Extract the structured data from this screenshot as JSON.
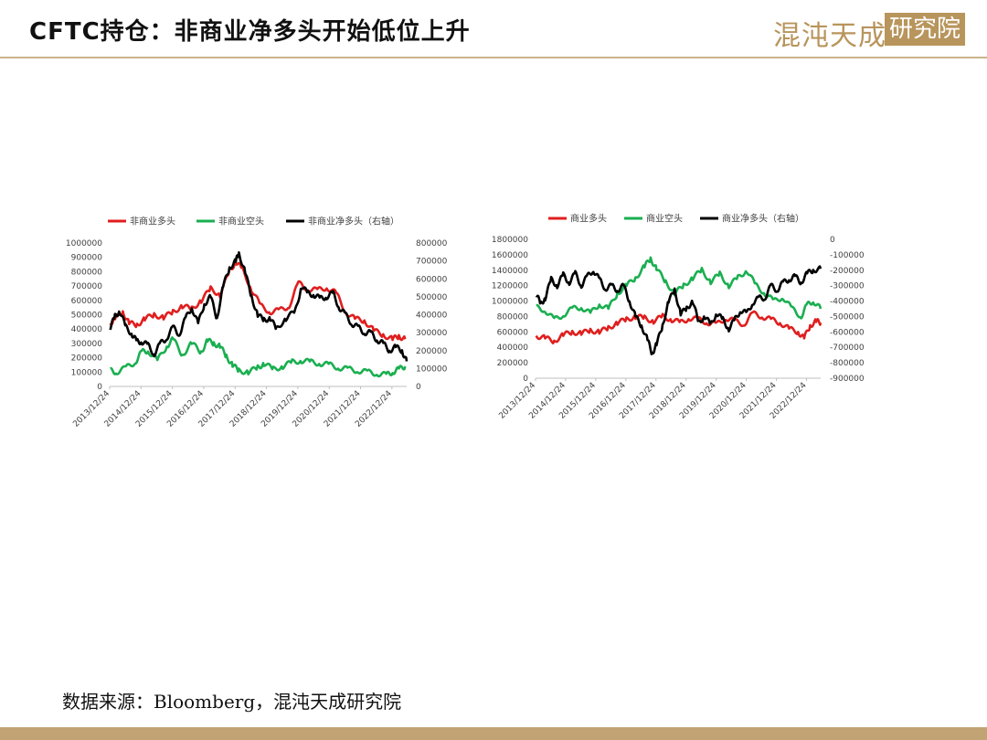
{
  "page": {
    "title": "CFTC持仓：非商业净多头开始低位上升",
    "logo_left": "混沌天成",
    "logo_right": "研究院",
    "source": "数据来源：Bloomberg，混沌天成研究院"
  },
  "colors": {
    "red": "#e01e1e",
    "green": "#1aaf50",
    "black": "#000000",
    "gold": "#b8955c"
  },
  "chart_data": [
    {
      "type": "line",
      "legend": [
        "非商业多头",
        "非商业空头",
        "非商业净多头（右轴）"
      ],
      "x_ticks": [
        "2013/12/24",
        "2014/12/24",
        "2015/12/24",
        "2016/12/24",
        "2017/12/24",
        "2018/12/24",
        "2019/12/24",
        "2020/12/24",
        "2021/12/24",
        "2022/12/24"
      ],
      "x_range": [
        2013.98,
        2023.45
      ],
      "y_left": {
        "ylim": [
          0,
          1000000
        ],
        "ticks": [
          "1000000",
          "900000",
          "800000",
          "700000",
          "600000",
          "500000",
          "400000",
          "300000",
          "200000",
          "100000",
          "0"
        ]
      },
      "y_right": {
        "ylim": [
          0,
          800000
        ],
        "ticks": [
          "800000",
          "700000",
          "600000",
          "500000",
          "400000",
          "300000",
          "200000",
          "100000",
          "0"
        ]
      },
      "series": [
        {
          "name": "非商业多头",
          "color": "#e01e1e",
          "axis": "left",
          "x": [
            2014.0,
            2014.15,
            2014.4,
            2014.6,
            2014.85,
            2015.1,
            2015.4,
            2015.7,
            2016.0,
            2016.3,
            2016.6,
            2016.9,
            2017.2,
            2017.5,
            2017.8,
            2018.0,
            2018.2,
            2018.5,
            2018.8,
            2019.1,
            2019.4,
            2019.7,
            2020.0,
            2020.3,
            2020.6,
            2020.9,
            2021.2,
            2021.5,
            2021.8,
            2022.1,
            2022.4,
            2022.7,
            2023.0,
            2023.2,
            2023.4
          ],
          "y": [
            440000,
            470000,
            520000,
            440000,
            430000,
            470000,
            500000,
            480000,
            520000,
            560000,
            540000,
            600000,
            680000,
            640000,
            800000,
            870000,
            820000,
            680000,
            560000,
            520000,
            530000,
            560000,
            720000,
            680000,
            670000,
            690000,
            650000,
            520000,
            470000,
            460000,
            390000,
            360000,
            330000,
            350000,
            330000
          ]
        },
        {
          "name": "非商业空头",
          "color": "#1aaf50",
          "axis": "left",
          "x": [
            2014.0,
            2014.2,
            2014.5,
            2014.8,
            2015.0,
            2015.2,
            2015.5,
            2015.8,
            2016.0,
            2016.3,
            2016.6,
            2016.9,
            2017.1,
            2017.3,
            2017.5,
            2017.7,
            2017.9,
            2018.1,
            2018.4,
            2018.7,
            2018.9,
            2019.2,
            2019.5,
            2019.8,
            2020.1,
            2020.4,
            2020.7,
            2021.0,
            2021.3,
            2021.6,
            2021.9,
            2022.2,
            2022.5,
            2022.8,
            2023.0,
            2023.2,
            2023.4
          ],
          "y": [
            110000,
            100000,
            130000,
            170000,
            240000,
            250000,
            180000,
            280000,
            330000,
            220000,
            300000,
            240000,
            320000,
            300000,
            280000,
            210000,
            150000,
            110000,
            100000,
            130000,
            160000,
            120000,
            140000,
            170000,
            180000,
            170000,
            160000,
            150000,
            130000,
            120000,
            110000,
            100000,
            90000,
            80000,
            100000,
            120000,
            140000
          ]
        },
        {
          "name": "非商业净多头（右轴）",
          "color": "#000000",
          "axis": "right",
          "x": [
            2014.0,
            2014.15,
            2014.3,
            2014.5,
            2014.7,
            2014.85,
            2015.0,
            2015.2,
            2015.4,
            2015.6,
            2015.8,
            2016.0,
            2016.2,
            2016.4,
            2016.6,
            2016.8,
            2017.0,
            2017.2,
            2017.4,
            2017.6,
            2017.8,
            2018.0,
            2018.1,
            2018.3,
            2018.5,
            2018.7,
            2018.9,
            2019.1,
            2019.3,
            2019.6,
            2019.9,
            2020.1,
            2020.3,
            2020.5,
            2020.7,
            2020.9,
            2021.1,
            2021.3,
            2021.5,
            2021.7,
            2021.9,
            2022.1,
            2022.3,
            2022.5,
            2022.7,
            2022.9,
            2023.1,
            2023.3,
            2023.45
          ],
          "y": [
            330000,
            390000,
            420000,
            330000,
            290000,
            250000,
            250000,
            230000,
            180000,
            240000,
            270000,
            330000,
            290000,
            380000,
            440000,
            350000,
            460000,
            500000,
            380000,
            560000,
            660000,
            700000,
            740000,
            640000,
            500000,
            400000,
            370000,
            380000,
            320000,
            380000,
            420000,
            560000,
            520000,
            510000,
            490000,
            500000,
            520000,
            440000,
            400000,
            350000,
            330000,
            300000,
            300000,
            260000,
            240000,
            200000,
            220000,
            200000,
            140000
          ]
        }
      ]
    },
    {
      "type": "line",
      "legend": [
        "商业多头",
        "商业空头",
        "商业净多头（右轴）"
      ],
      "x_ticks": [
        "2013/12/24",
        "2014/12/24",
        "2015/12/24",
        "2016/12/24",
        "2017/12/24",
        "2018/12/24",
        "2019/12/24",
        "2020/12/24",
        "2021/12/24",
        "2022/12/24"
      ],
      "x_range": [
        2013.98,
        2023.45
      ],
      "y_left": {
        "ylim": [
          0,
          1800000
        ],
        "ticks": [
          "1800000",
          "1600000",
          "1400000",
          "1200000",
          "1000000",
          "800000",
          "600000",
          "400000",
          "200000",
          "0"
        ]
      },
      "y_right": {
        "ylim": [
          -900000,
          0
        ],
        "ticks": [
          "0",
          "-100000",
          "-200000",
          "-300000",
          "-400000",
          "-500000",
          "-600000",
          "-700000",
          "-800000",
          "-900000"
        ]
      },
      "series": [
        {
          "name": "商业多头",
          "color": "#e01e1e",
          "axis": "left",
          "x": [
            2014.0,
            2014.3,
            2014.6,
            2014.9,
            2015.2,
            2015.5,
            2015.8,
            2016.1,
            2016.4,
            2016.7,
            2017.0,
            2017.3,
            2017.6,
            2017.9,
            2018.2,
            2018.5,
            2018.8,
            2019.1,
            2019.4,
            2019.7,
            2020.0,
            2020.3,
            2020.6,
            2020.9,
            2021.2,
            2021.5,
            2021.8,
            2022.1,
            2022.4,
            2022.7,
            2022.9,
            2023.1,
            2023.3,
            2023.45
          ],
          "y": [
            550000,
            520000,
            480000,
            560000,
            600000,
            580000,
            620000,
            600000,
            650000,
            720000,
            760000,
            800000,
            780000,
            740000,
            800000,
            760000,
            720000,
            780000,
            760000,
            720000,
            700000,
            780000,
            740000,
            700000,
            840000,
            800000,
            760000,
            720000,
            640000,
            600000,
            520000,
            680000,
            740000,
            720000
          ]
        },
        {
          "name": "商业空头",
          "color": "#1aaf50",
          "axis": "left",
          "x": [
            2014.0,
            2014.3,
            2014.6,
            2014.9,
            2015.2,
            2015.5,
            2015.8,
            2016.1,
            2016.4,
            2016.7,
            2017.0,
            2017.3,
            2017.6,
            2017.8,
            2018.0,
            2018.3,
            2018.6,
            2018.9,
            2019.2,
            2019.5,
            2019.8,
            2020.1,
            2020.4,
            2020.7,
            2021.0,
            2021.3,
            2021.6,
            2021.9,
            2022.2,
            2022.5,
            2022.8,
            2023.0,
            2023.2,
            2023.45
          ],
          "y": [
            920000,
            880000,
            760000,
            820000,
            900000,
            920000,
            840000,
            960000,
            900000,
            1100000,
            1200000,
            1300000,
            1450000,
            1550000,
            1420000,
            1250000,
            1100000,
            1200000,
            1300000,
            1400000,
            1250000,
            1350000,
            1200000,
            1300000,
            1400000,
            1200000,
            1100000,
            1000000,
            1050000,
            900000,
            800000,
            950000,
            1000000,
            900000
          ]
        },
        {
          "name": "商业净多头（右轴）",
          "color": "#000000",
          "axis": "right",
          "x": [
            2014.0,
            2014.15,
            2014.3,
            2014.5,
            2014.7,
            2014.9,
            2015.1,
            2015.3,
            2015.5,
            2015.7,
            2015.9,
            2016.1,
            2016.3,
            2016.5,
            2016.7,
            2016.9,
            2017.1,
            2017.3,
            2017.5,
            2017.7,
            2017.85,
            2018.0,
            2018.2,
            2018.4,
            2018.6,
            2018.8,
            2019.0,
            2019.2,
            2019.4,
            2019.6,
            2019.8,
            2020.0,
            2020.2,
            2020.4,
            2020.6,
            2020.8,
            2021.0,
            2021.2,
            2021.4,
            2021.6,
            2021.8,
            2022.0,
            2022.2,
            2022.4,
            2022.6,
            2022.8,
            2023.0,
            2023.2,
            2023.45
          ],
          "y": [
            -350000,
            -420000,
            -380000,
            -260000,
            -300000,
            -230000,
            -280000,
            -220000,
            -300000,
            -240000,
            -200000,
            -260000,
            -320000,
            -300000,
            -330000,
            -300000,
            -400000,
            -500000,
            -560000,
            -650000,
            -740000,
            -680000,
            -560000,
            -400000,
            -330000,
            -480000,
            -450000,
            -400000,
            -540000,
            -500000,
            -550000,
            -480000,
            -520000,
            -580000,
            -520000,
            -460000,
            -480000,
            -410000,
            -380000,
            -380000,
            -300000,
            -330000,
            -280000,
            -260000,
            -240000,
            -280000,
            -220000,
            -200000,
            -190000
          ]
        }
      ]
    }
  ]
}
